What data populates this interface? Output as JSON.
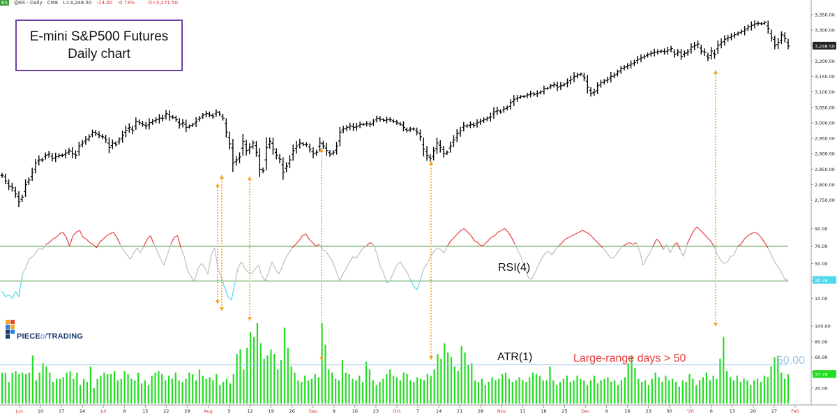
{
  "header": {
    "badge": "ES",
    "symbol": "@ES - Daily",
    "exchange": "CME",
    "last": "L=3,248.50",
    "change": "-24.00",
    "change_pct": "-0.73%",
    "open": "O=3,271.50"
  },
  "title_box": {
    "line1": "E-mini S&P500 Futures",
    "line2": "Daily chart"
  },
  "logo": {
    "text_bold": "PIECE",
    "text_italic": "of",
    "text_bold2": "TRADING"
  },
  "colors": {
    "price_bar": "#000000",
    "rsi_overbought": "#e83a3a",
    "rsi_neutral": "#bdbdbd",
    "rsi_oversold": "#4fd7ee",
    "rsi_level_line": "#2e8b2e",
    "atr_bar": "#22dd22",
    "atr_threshold_line": "#9ec4e6",
    "arrow": "#f5a623",
    "annotation_red": "#e63b3b",
    "title_border": "#6b3fa0",
    "last_price_bg": "#222222",
    "rsi_value_bg": "#4fd7ee",
    "atr_value_bg": "#22dd22"
  },
  "chart_data": [
    {
      "type": "ohlc",
      "title": "E-mini S&P500 Futures Daily chart",
      "x_labels": [
        "Jun",
        "10",
        "17",
        "24",
        "Jul",
        "8",
        "15",
        "22",
        "29",
        "Aug",
        "5",
        "12",
        "19",
        "26",
        "Sep",
        "9",
        "16",
        "23",
        "Oct",
        "7",
        "14",
        "21",
        "28",
        "Nov",
        "11",
        "18",
        "25",
        "Dec",
        "9",
        "16",
        "23",
        "30",
        "'20",
        "6",
        "13",
        "20",
        "27",
        "Feb"
      ],
      "yticks": [
        "3,350.00",
        "3,300.00",
        "3,250.00",
        "3,200.00",
        "3,150.00",
        "3,100.00",
        "3,050.00",
        "3,000.00",
        "2,950.00",
        "2,900.00",
        "2,850.00",
        "2,800.00",
        "2,750.00"
      ],
      "ylim": [
        2720,
        3370
      ],
      "last_price_label": "3,248.50",
      "closes": [
        2830,
        2812,
        2795,
        2790,
        2770,
        2745,
        2760,
        2800,
        2815,
        2840,
        2870,
        2880,
        2880,
        2895,
        2900,
        2885,
        2890,
        2895,
        2895,
        2902,
        2910,
        2900,
        2895,
        2925,
        2935,
        2945,
        2955,
        2970,
        2965,
        2960,
        2955,
        2945,
        2920,
        2935,
        2930,
        2945,
        2960,
        2975,
        2985,
        2975,
        3005,
        3000,
        2995,
        2990,
        3000,
        3005,
        3010,
        3015,
        3015,
        3030,
        3020,
        3018,
        3010,
        2995,
        3000,
        2985,
        2990,
        2995,
        3005,
        3015,
        3025,
        3030,
        3025,
        3020,
        3035,
        3028,
        3015,
        2970,
        2932,
        2870,
        2880,
        2890,
        2940,
        2910,
        2920,
        2935,
        2905,
        2850,
        2845,
        2920,
        2940,
        2915,
        2895,
        2882,
        2840,
        2860,
        2880,
        2910,
        2925,
        2935,
        2930,
        2930,
        2915,
        2900,
        2905,
        2935,
        2925,
        2910,
        2898,
        2905,
        2925,
        2970,
        2980,
        2985,
        2990,
        2985,
        2988,
        2995,
        2995,
        2998,
        2995,
        3005,
        3015,
        3012,
        3008,
        3010,
        3010,
        3005,
        3000,
        2995,
        2985,
        2975,
        2980,
        2980,
        2970,
        2955,
        2915,
        2895,
        2885,
        2910,
        2935,
        2920,
        2900,
        2905,
        2925,
        2945,
        2965,
        2975,
        2990,
        2990,
        2995,
        2992,
        3000,
        3005,
        3010,
        3015,
        3020,
        3035,
        3040,
        3035,
        3045,
        3050,
        3065,
        3075,
        3080,
        3085,
        3085,
        3090,
        3095,
        3092,
        3095,
        3100,
        3110,
        3112,
        3120,
        3125,
        3115,
        3120,
        3125,
        3130,
        3140,
        3150,
        3155,
        3158,
        3145,
        3115,
        3095,
        3100,
        3120,
        3130,
        3135,
        3140,
        3150,
        3155,
        3165,
        3175,
        3180,
        3185,
        3190,
        3195,
        3205,
        3210,
        3215,
        3220,
        3225,
        3228,
        3230,
        3232,
        3230,
        3235,
        3240,
        3220,
        3230,
        3215,
        3225,
        3230,
        3245,
        3250,
        3255,
        3232,
        3228,
        3210,
        3232,
        3220,
        3250,
        3260,
        3270,
        3275,
        3280,
        3285,
        3290,
        3295,
        3300,
        3310,
        3315,
        3320,
        3322,
        3320,
        3325,
        3305,
        3275,
        3250,
        3260,
        3285,
        3272,
        3248.5
      ]
    },
    {
      "type": "line",
      "title": "RSI(4)",
      "yticks": [
        "90.00",
        "70.00",
        "50.00",
        "30.00",
        "10.00"
      ],
      "ylim": [
        0,
        100
      ],
      "levels": [
        70,
        30
      ],
      "last_value_label": "30.76",
      "values": [
        18,
        12,
        14,
        10,
        18,
        12,
        38,
        45,
        55,
        58,
        62,
        68,
        66,
        72,
        74,
        78,
        80,
        84,
        86,
        80,
        70,
        82,
        86,
        88,
        80,
        78,
        74,
        72,
        68,
        75,
        78,
        82,
        84,
        86,
        80,
        72,
        65,
        60,
        55,
        62,
        68,
        62,
        70,
        78,
        82,
        72,
        64,
        55,
        48,
        60,
        72,
        80,
        82,
        68,
        58,
        42,
        35,
        30,
        44,
        50,
        46,
        38,
        60,
        68,
        44,
        34,
        22,
        12,
        8,
        28,
        46,
        52,
        44,
        40,
        38,
        44,
        48,
        36,
        30,
        40,
        52,
        44,
        38,
        46,
        56,
        62,
        68,
        72,
        76,
        82,
        84,
        78,
        74,
        70,
        72,
        66,
        64,
        58,
        52,
        42,
        30,
        38,
        44,
        52,
        58,
        56,
        62,
        68,
        70,
        74,
        72,
        62,
        48,
        40,
        28,
        30,
        40,
        48,
        52,
        46,
        40,
        32,
        24,
        20,
        32,
        44,
        50,
        58,
        64,
        68,
        66,
        62,
        70,
        76,
        80,
        84,
        88,
        90,
        86,
        82,
        76,
        74,
        70,
        72,
        76,
        80,
        82,
        86,
        88,
        90,
        86,
        80,
        72,
        64,
        56,
        44,
        34,
        32,
        40,
        48,
        56,
        62,
        64,
        60,
        66,
        70,
        74,
        78,
        80,
        82,
        84,
        86,
        88,
        86,
        84,
        80,
        76,
        72,
        68,
        64,
        58,
        56,
        60,
        66,
        70,
        72,
        74,
        72,
        74,
        64,
        48,
        56,
        62,
        70,
        78,
        74,
        66,
        72,
        62,
        70,
        74,
        66,
        58,
        72,
        80,
        88,
        92,
        88,
        84,
        80,
        76,
        70,
        60,
        54,
        50,
        52,
        58,
        60,
        70,
        72,
        78,
        82,
        84,
        86,
        84,
        80,
        74,
        68,
        60,
        52,
        46,
        40,
        32,
        30.76
      ]
    },
    {
      "type": "bar",
      "title": "ATR(1)",
      "yticks": [
        "100.00",
        "80.00",
        "60.00",
        "40.00",
        "20.00"
      ],
      "ylim": [
        0,
        120
      ],
      "threshold": 50,
      "threshold_label": "50.00",
      "last_value_label": "37.76",
      "annotation": "Large-range days > 50",
      "values": [
        40,
        40,
        28,
        40,
        42,
        38,
        40,
        38,
        40,
        62,
        30,
        40,
        52,
        48,
        40,
        28,
        32,
        32,
        34,
        40,
        42,
        32,
        40,
        24,
        32,
        28,
        48,
        20,
        32,
        36,
        40,
        38,
        38,
        42,
        30,
        32,
        42,
        38,
        32,
        30,
        40,
        26,
        30,
        24,
        36,
        40,
        42,
        38,
        30,
        36,
        32,
        40,
        30,
        28,
        32,
        40,
        38,
        30,
        44,
        36,
        32,
        34,
        30,
        38,
        24,
        28,
        32,
        26,
        38,
        64,
        70,
        44,
        72,
        92,
        86,
        104,
        78,
        58,
        62,
        70,
        64,
        44,
        56,
        98,
        72,
        48,
        40,
        30,
        28,
        36,
        30,
        32,
        38,
        34,
        104,
        76,
        44,
        40,
        32,
        30,
        56,
        40,
        38,
        32,
        30,
        36,
        28,
        54,
        44,
        30,
        24,
        28,
        32,
        38,
        44,
        36,
        34,
        30,
        40,
        38,
        30,
        28,
        34,
        32,
        30,
        38,
        36,
        44,
        64,
        58,
        78,
        66,
        60,
        48,
        42,
        74,
        66,
        50,
        52,
        30,
        28,
        32,
        24,
        28,
        34,
        30,
        32,
        38,
        40,
        32,
        28,
        30,
        34,
        30,
        28,
        34,
        40,
        38,
        36,
        30,
        30,
        48,
        30,
        24,
        28,
        32,
        36,
        28,
        30,
        36,
        32,
        30,
        24,
        30,
        36,
        26,
        30,
        32,
        34,
        28,
        30,
        24,
        30,
        34,
        52,
        62,
        46,
        32,
        28,
        30,
        24,
        32,
        40,
        34,
        28,
        36,
        30,
        32,
        28,
        22,
        30,
        28,
        38,
        32,
        24,
        30,
        34,
        40,
        30,
        36,
        32,
        58,
        86,
        42,
        34,
        30,
        36,
        28,
        32,
        30,
        24,
        30,
        32,
        28,
        36,
        34,
        48,
        60,
        62,
        40,
        32,
        37.76
      ]
    }
  ]
}
